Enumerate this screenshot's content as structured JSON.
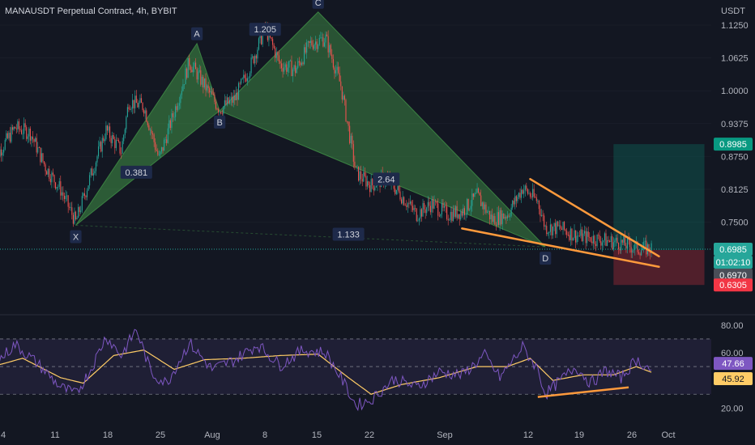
{
  "header": {
    "title": "MANAUSDT Perpetual Contract, 4h, BYBIT",
    "currency": "USDT"
  },
  "colors": {
    "background": "#131722",
    "up": "#26a69a",
    "down": "#ef5350",
    "pattern_fill": "#4caf50",
    "trendline": "#ff9a3c",
    "rsi_line": "#7e57c2",
    "rsi_ma": "#ffcc66",
    "text": "#b2b5be",
    "grid": "#2a2e39"
  },
  "chart_data": [
    {
      "type": "candlestick",
      "symbol": "MANAUSDT",
      "timeframe": "4h",
      "exchange": "BYBIT",
      "ylim": [
        0.58,
        1.125
      ],
      "y_ticks": [
        {
          "value": 1.125,
          "label": "1.1250"
        },
        {
          "value": 1.0625,
          "label": "1.0625"
        },
        {
          "value": 1.0,
          "label": "1.0000"
        },
        {
          "value": 0.9375,
          "label": "0.9375"
        },
        {
          "value": 0.875,
          "label": "0.8750"
        },
        {
          "value": 0.8125,
          "label": "0.8125"
        },
        {
          "value": 0.75,
          "label": "0.7500"
        }
      ],
      "x_ticks": [
        "4",
        "11",
        "18",
        "25",
        "Aug",
        "8",
        "15",
        "22",
        "Sep",
        "12",
        "19",
        "26",
        "Oct"
      ],
      "price_labels": [
        {
          "label": "0.8985",
          "value": 0.8985,
          "color": "#089981",
          "kind": "take-profit"
        },
        {
          "label": "0.6985",
          "value": 0.6985,
          "color": "#26a69a",
          "kind": "last-price"
        },
        {
          "label": "01:02:10",
          "value": null,
          "color": "#26a69a",
          "kind": "countdown"
        },
        {
          "label": "0.6970",
          "value": 0.697,
          "color": "#4a4e58",
          "kind": "entry"
        },
        {
          "label": "0.6305",
          "value": 0.6305,
          "color": "#f23645",
          "kind": "stop-loss"
        }
      ],
      "harmonic_points": [
        {
          "label": "X",
          "date": "Jul 13",
          "price": 0.744
        },
        {
          "label": "A",
          "date": "Jul 29",
          "price": 1.09
        },
        {
          "label": "B",
          "date": "Aug 1",
          "price": 0.962
        },
        {
          "label": "C",
          "date": "Aug 14",
          "price": 1.15
        },
        {
          "label": "D",
          "date": "Sep 13",
          "price": 0.703
        }
      ],
      "ratio_labels": [
        {
          "label": "0.381",
          "date": "Jul 21",
          "price": 0.845
        },
        {
          "label": "1.205",
          "date": "Aug 7",
          "price": 1.117
        },
        {
          "label": "2.64",
          "date": "Aug 23",
          "price": 0.832
        },
        {
          "label": "1.133",
          "date": "Aug 18",
          "price": 0.727
        }
      ],
      "trendlines": [
        {
          "name": "upper-wedge",
          "from": {
            "date": "Sep 11",
            "price": 0.832
          },
          "to": {
            "date": "Sep 28",
            "price": 0.685
          }
        },
        {
          "name": "lower-wedge",
          "from": {
            "date": "Sep 2",
            "price": 0.738
          },
          "to": {
            "date": "Sep 28",
            "price": 0.665
          }
        }
      ],
      "long_position": {
        "entry": 0.697,
        "target": 0.8985,
        "stop": 0.6305,
        "start": "Sep 22",
        "end": "Oct 4"
      },
      "price_path": [
        {
          "date": "Jul 2",
          "price": 0.865
        },
        {
          "date": "Jul 5",
          "price": 0.93
        },
        {
          "date": "Jul 7",
          "price": 0.92
        },
        {
          "date": "Jul 9",
          "price": 0.855
        },
        {
          "date": "Jul 11",
          "price": 0.812
        },
        {
          "date": "Jul 13",
          "price": 0.75
        },
        {
          "date": "Jul 15",
          "price": 0.84
        },
        {
          "date": "Jul 17",
          "price": 0.925
        },
        {
          "date": "Jul 19",
          "price": 0.885
        },
        {
          "date": "Jul 20",
          "price": 0.98
        },
        {
          "date": "Jul 22",
          "price": 0.97
        },
        {
          "date": "Jul 24",
          "price": 0.87
        },
        {
          "date": "Jul 26",
          "price": 0.96
        },
        {
          "date": "Jul 28",
          "price": 1.055
        },
        {
          "date": "Jul 30",
          "price": 1.01
        },
        {
          "date": "Aug 1",
          "price": 0.965
        },
        {
          "date": "Aug 3",
          "price": 0.985
        },
        {
          "date": "Aug 5",
          "price": 1.045
        },
        {
          "date": "Aug 7",
          "price": 1.12
        },
        {
          "date": "Aug 9",
          "price": 1.05
        },
        {
          "date": "Aug 11",
          "price": 1.04
        },
        {
          "date": "Aug 13",
          "price": 1.09
        },
        {
          "date": "Aug 15",
          "price": 1.1
        },
        {
          "date": "Aug 17",
          "price": 1.01
        },
        {
          "date": "Aug 19",
          "price": 0.845
        },
        {
          "date": "Aug 21",
          "price": 0.82
        },
        {
          "date": "Aug 23",
          "price": 0.835
        },
        {
          "date": "Aug 25",
          "price": 0.8
        },
        {
          "date": "Aug 27",
          "price": 0.765
        },
        {
          "date": "Aug 29",
          "price": 0.785
        },
        {
          "date": "Aug 31",
          "price": 0.765
        },
        {
          "date": "Sep 2",
          "price": 0.77
        },
        {
          "date": "Sep 4",
          "price": 0.8
        },
        {
          "date": "Sep 6",
          "price": 0.755
        },
        {
          "date": "Sep 8",
          "price": 0.765
        },
        {
          "date": "Sep 10",
          "price": 0.815
        },
        {
          "date": "Sep 12",
          "price": 0.79
        },
        {
          "date": "Sep 13",
          "price": 0.74
        },
        {
          "date": "Sep 15",
          "price": 0.738
        },
        {
          "date": "Sep 17",
          "price": 0.725
        },
        {
          "date": "Sep 19",
          "price": 0.72
        },
        {
          "date": "Sep 21",
          "price": 0.715
        },
        {
          "date": "Sep 23",
          "price": 0.71
        },
        {
          "date": "Sep 25",
          "price": 0.7
        },
        {
          "date": "Sep 27",
          "price": 0.7
        }
      ]
    },
    {
      "type": "line",
      "indicator": "RSI",
      "ylim": [
        12,
        84
      ],
      "y_ticks": [
        {
          "value": 80,
          "label": "80.00"
        },
        {
          "value": 60,
          "label": "60.00"
        },
        {
          "value": 20,
          "label": "20.00"
        }
      ],
      "band": [
        30,
        70
      ],
      "midline": 50,
      "value_labels": [
        {
          "label": "47.66",
          "value": 47.66,
          "color": "#7e57c2"
        },
        {
          "label": "45.92",
          "value": 45.92,
          "color": "#ffcc66"
        }
      ],
      "series": [
        {
          "role": "rsi",
          "points": [
            {
              "date": "Jul 2",
              "value": 50
            },
            {
              "date": "Jul 5",
              "value": 66
            },
            {
              "date": "Jul 8",
              "value": 52
            },
            {
              "date": "Jul 11",
              "value": 35
            },
            {
              "date": "Jul 13",
              "value": 30
            },
            {
              "date": "Jul 15",
              "value": 48
            },
            {
              "date": "Jul 17",
              "value": 72
            },
            {
              "date": "Jul 19",
              "value": 58
            },
            {
              "date": "Jul 21",
              "value": 77
            },
            {
              "date": "Jul 23",
              "value": 45
            },
            {
              "date": "Jul 25",
              "value": 38
            },
            {
              "date": "Jul 28",
              "value": 67
            },
            {
              "date": "Jul 31",
              "value": 48
            },
            {
              "date": "Aug 3",
              "value": 55
            },
            {
              "date": "Aug 6",
              "value": 66
            },
            {
              "date": "Aug 9",
              "value": 51
            },
            {
              "date": "Aug 12",
              "value": 62
            },
            {
              "date": "Aug 15",
              "value": 60
            },
            {
              "date": "Aug 17",
              "value": 42
            },
            {
              "date": "Aug 19",
              "value": 22
            },
            {
              "date": "Aug 21",
              "value": 26
            },
            {
              "date": "Aug 24",
              "value": 41
            },
            {
              "date": "Aug 27",
              "value": 35
            },
            {
              "date": "Aug 30",
              "value": 46
            },
            {
              "date": "Sep 2",
              "value": 44
            },
            {
              "date": "Sep 5",
              "value": 58
            },
            {
              "date": "Sep 7",
              "value": 42
            },
            {
              "date": "Sep 10",
              "value": 64
            },
            {
              "date": "Sep 12",
              "value": 48
            },
            {
              "date": "Sep 13",
              "value": 30
            },
            {
              "date": "Sep 15",
              "value": 40
            },
            {
              "date": "Sep 17",
              "value": 50
            },
            {
              "date": "Sep 19",
              "value": 38
            },
            {
              "date": "Sep 21",
              "value": 47
            },
            {
              "date": "Sep 23",
              "value": 42
            },
            {
              "date": "Sep 25",
              "value": 55
            },
            {
              "date": "Sep 27",
              "value": 47.66
            }
          ]
        },
        {
          "role": "rsi-moving-average",
          "points": [
            {
              "date": "Jul 2",
              "value": 50
            },
            {
              "date": "Jul 6",
              "value": 56
            },
            {
              "date": "Jul 11",
              "value": 42
            },
            {
              "date": "Jul 14",
              "value": 38
            },
            {
              "date": "Jul 18",
              "value": 58
            },
            {
              "date": "Jul 22",
              "value": 62
            },
            {
              "date": "Jul 26",
              "value": 48
            },
            {
              "date": "Jul 30",
              "value": 55
            },
            {
              "date": "Aug 4",
              "value": 56
            },
            {
              "date": "Aug 9",
              "value": 58
            },
            {
              "date": "Aug 14",
              "value": 59
            },
            {
              "date": "Aug 18",
              "value": 42
            },
            {
              "date": "Aug 21",
              "value": 30
            },
            {
              "date": "Aug 25",
              "value": 37
            },
            {
              "date": "Aug 30",
              "value": 42
            },
            {
              "date": "Sep 4",
              "value": 50
            },
            {
              "date": "Sep 8",
              "value": 50
            },
            {
              "date": "Sep 11",
              "value": 56
            },
            {
              "date": "Sep 14",
              "value": 40
            },
            {
              "date": "Sep 18",
              "value": 44
            },
            {
              "date": "Sep 22",
              "value": 44
            },
            {
              "date": "Sep 25",
              "value": 50
            },
            {
              "date": "Sep 27",
              "value": 45.92
            }
          ]
        }
      ],
      "trendline": {
        "from": {
          "date": "Sep 12",
          "value": 28
        },
        "to": {
          "date": "Sep 24",
          "value": 35
        }
      }
    }
  ]
}
